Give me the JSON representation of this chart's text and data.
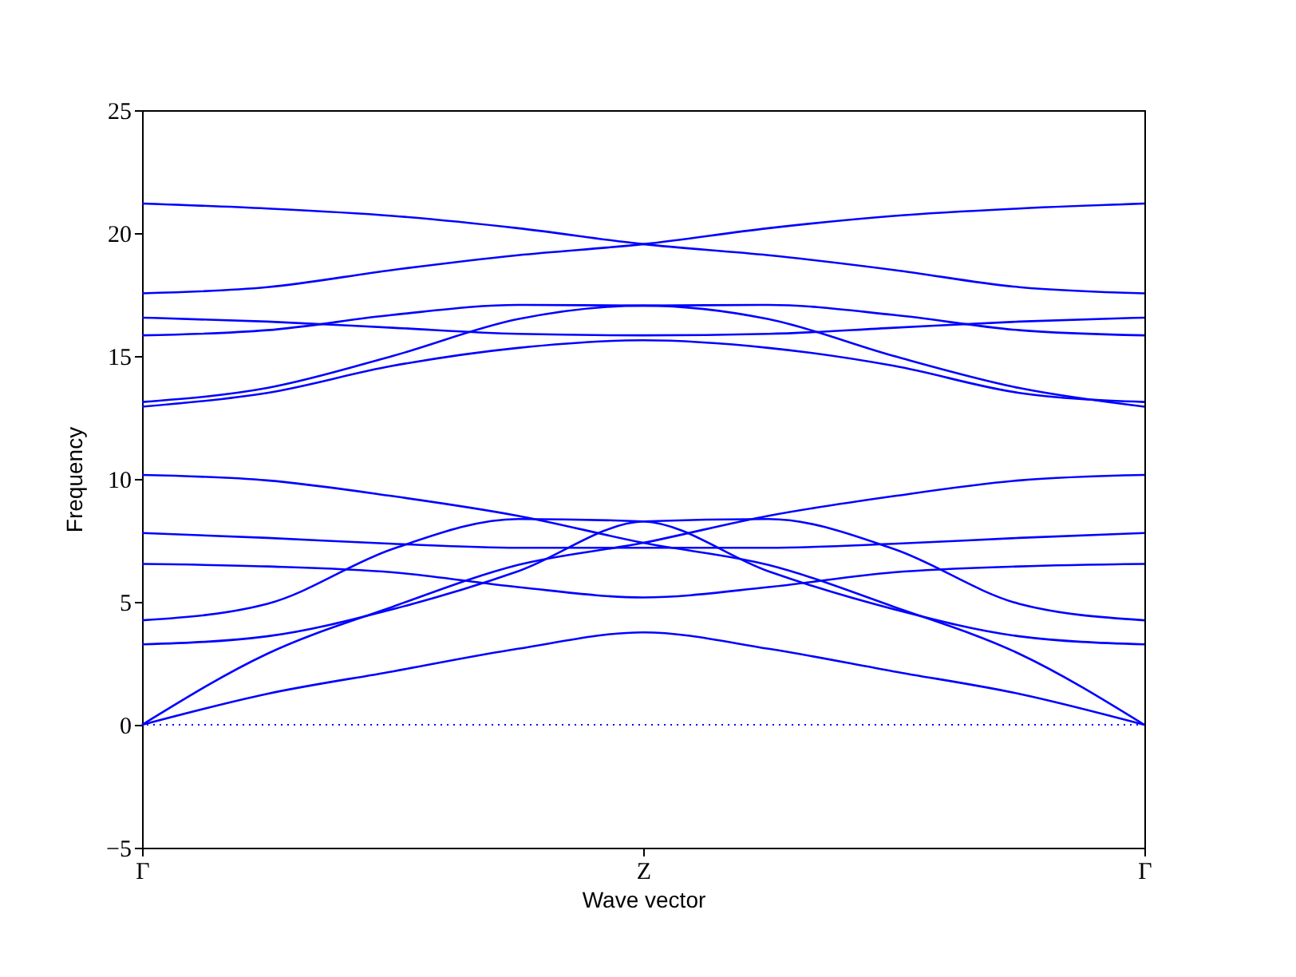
{
  "chart_data": {
    "type": "line",
    "xlabel": "Wave vector",
    "ylabel": "Frequency",
    "categories": [
      "Γ",
      null,
      null,
      null,
      "Z",
      null,
      null,
      null,
      "Γ"
    ],
    "ylim": [
      -5,
      25
    ],
    "yticks": [
      -5,
      0,
      5,
      10,
      15,
      20,
      25
    ],
    "grid": false,
    "legend": false,
    "marker": "none",
    "line_style": "solid",
    "series": [
      {
        "color": "#0000ff",
        "values": [
          21.2,
          21.0,
          20.7,
          20.2,
          19.55,
          19.1,
          18.5,
          17.8,
          17.55
        ]
      },
      {
        "color": "#0000ff",
        "values": [
          17.55,
          17.8,
          18.5,
          19.1,
          19.55,
          20.2,
          20.7,
          21.0,
          21.2
        ]
      },
      {
        "color": "#0000ff",
        "values": [
          15.84,
          16.05,
          16.67,
          17.08,
          17.05,
          17.08,
          16.67,
          16.05,
          15.84
        ]
      },
      {
        "color": "#0000ff",
        "values": [
          13.13,
          13.7,
          15.0,
          16.5,
          17.05,
          16.5,
          15.0,
          13.7,
          12.94
        ]
      },
      {
        "color": "#0000ff",
        "values": [
          12.94,
          13.5,
          14.6,
          15.33,
          15.64,
          15.33,
          14.6,
          13.5,
          13.13
        ]
      },
      {
        "color": "#0000ff",
        "values": [
          16.56,
          16.4,
          16.15,
          15.9,
          15.84,
          15.9,
          16.15,
          16.4,
          16.56
        ]
      },
      {
        "color": "#0000ff",
        "values": [
          10.16,
          9.94,
          9.3,
          8.5,
          7.4,
          6.5,
          4.8,
          2.89,
          0
        ]
      },
      {
        "color": "#0000ff",
        "values": [
          0,
          2.89,
          4.8,
          6.5,
          7.4,
          8.5,
          9.3,
          9.94,
          10.16
        ]
      },
      {
        "color": "#0000ff",
        "values": [
          4.25,
          4.92,
          7.15,
          8.37,
          8.27,
          6.24,
          4.7,
          3.6,
          3.27
        ]
      },
      {
        "color": "#0000ff",
        "values": [
          3.27,
          3.6,
          4.7,
          6.24,
          8.27,
          8.37,
          7.15,
          4.92,
          4.25
        ]
      },
      {
        "color": "#0000ff",
        "values": [
          7.8,
          7.6,
          7.36,
          7.2,
          7.2,
          7.2,
          7.36,
          7.6,
          7.8
        ]
      },
      {
        "color": "#0000ff",
        "values": [
          6.54,
          6.44,
          6.2,
          5.6,
          5.18,
          5.6,
          6.2,
          6.44,
          6.54
        ]
      },
      {
        "color": "#0000ff",
        "values": [
          0,
          1.26,
          2.17,
          3.09,
          3.76,
          3.09,
          2.17,
          1.26,
          0
        ]
      }
    ],
    "ref_lines": [
      {
        "axis": "y",
        "value": 0,
        "color": "#0000ff",
        "line_style": "dotted"
      }
    ]
  }
}
